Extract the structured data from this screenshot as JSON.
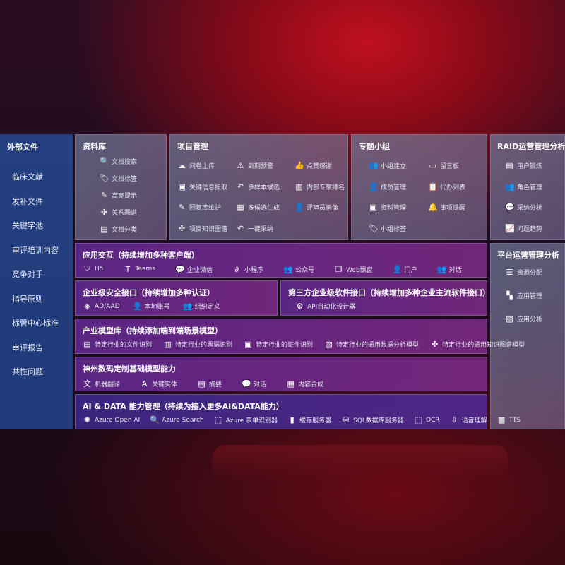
{
  "sidebar": {
    "title": "外部文件",
    "items": [
      "临床文献",
      "发补文件",
      "关键字池",
      "审评培训内容",
      "竞争对手",
      "指导原则",
      "标管中心标准",
      "审评报告",
      "共性问题"
    ]
  },
  "library": {
    "title": "资料库",
    "items": [
      {
        "icon": "doc-search-icon",
        "g": "🔍",
        "label": "文档搜索"
      },
      {
        "icon": "tag-icon",
        "g": "🏷",
        "label": "文档标签"
      },
      {
        "icon": "pen-icon",
        "g": "✎",
        "label": "高亮提示"
      },
      {
        "icon": "graph-icon",
        "g": "✣",
        "label": "关系图谱"
      },
      {
        "icon": "doc-classify-icon",
        "g": "▤",
        "label": "文档分类"
      }
    ]
  },
  "project": {
    "title": "项目管理",
    "items": [
      {
        "icon": "cloud-upload-icon",
        "g": "☁",
        "label": "问卷上传"
      },
      {
        "icon": "alarm-icon",
        "g": "⚠",
        "label": "到期预警"
      },
      {
        "icon": "thumbs-up-icon",
        "g": "👍",
        "label": "点赞感谢"
      },
      {
        "icon": "extract-icon",
        "g": "▣",
        "label": "关键信息提取"
      },
      {
        "icon": "reply-icon",
        "g": "↶",
        "label": "多样本候选"
      },
      {
        "icon": "ranking-icon",
        "g": "▥",
        "label": "内部专家排名"
      },
      {
        "icon": "edit-icon",
        "g": "✎",
        "label": "回复库维护"
      },
      {
        "icon": "puzzle-icon",
        "g": "▦",
        "label": "多候选生成"
      },
      {
        "icon": "user-icon",
        "g": "👤",
        "label": "评审员画像"
      },
      {
        "icon": "knowledge-graph-icon",
        "g": "✣",
        "label": "项目知识图谱"
      },
      {
        "icon": "reply-icon",
        "g": "↶",
        "label": "一键采纳"
      }
    ]
  },
  "group": {
    "title": "专题小组",
    "items": [
      {
        "icon": "group-icon",
        "g": "👥",
        "label": "小组建立"
      },
      {
        "icon": "bbs-icon",
        "g": "▭",
        "label": "留言板"
      },
      {
        "icon": "member-icon",
        "g": "👤",
        "label": "成员管理"
      },
      {
        "icon": "clipboard-icon",
        "g": "📋",
        "label": "代办列表"
      },
      {
        "icon": "folder-icon",
        "g": "▣",
        "label": "资料管理"
      },
      {
        "icon": "bell-icon",
        "g": "🔔",
        "label": "事项提醒"
      },
      {
        "icon": "tag-icon",
        "g": "🏷",
        "label": "小组标签"
      }
    ]
  },
  "raid": {
    "title": "RAID运营管理分析",
    "items": [
      {
        "icon": "id-card-icon",
        "g": "▤",
        "label": "用户锻炼"
      },
      {
        "icon": "roles-icon",
        "g": "👥",
        "label": "角色管理"
      },
      {
        "icon": "qa-icon",
        "g": "💬",
        "label": "采纳分析"
      },
      {
        "icon": "trend-icon",
        "g": "📈",
        "label": "问题趋势"
      }
    ]
  },
  "platform": {
    "title": "平台运营管理分析",
    "items": [
      {
        "icon": "list-icon",
        "g": "☰",
        "label": "资源分配"
      },
      {
        "icon": "apps-icon",
        "g": "▚",
        "label": "应用管理"
      },
      {
        "icon": "analysis-icon",
        "g": "▧",
        "label": "应用分析"
      }
    ]
  },
  "interaction": {
    "title": "应用交互（持续增加多种客户端）",
    "items": [
      {
        "icon": "html5-icon",
        "g": "⛉",
        "label": "H5"
      },
      {
        "icon": "teams-icon",
        "g": "T",
        "label": "Teams"
      },
      {
        "icon": "wechat-work-icon",
        "g": "💬",
        "label": "企业微信"
      },
      {
        "icon": "mini-program-icon",
        "g": "∂",
        "label": "小程序"
      },
      {
        "icon": "official-account-icon",
        "g": "👥",
        "label": "公众号"
      },
      {
        "icon": "window-icon",
        "g": "❐",
        "label": "Web飘窗"
      },
      {
        "icon": "portal-icon",
        "g": "👤",
        "label": "门户"
      },
      {
        "icon": "dialog-icon",
        "g": "👥",
        "label": "对话"
      }
    ]
  },
  "security": {
    "title": "企业级安全接口（持续增加多种认证）",
    "items": [
      {
        "icon": "ad-icon",
        "g": "◈",
        "label": "AD/AAD"
      },
      {
        "icon": "local-account-icon",
        "g": "👤",
        "label": "本地账号"
      },
      {
        "icon": "org-icon",
        "g": "👥",
        "label": "组织定义"
      }
    ]
  },
  "thirdparty": {
    "title": "第三方企业级软件接口（持续增加多种企业主流软件接口）",
    "items": [
      {
        "icon": "gear-icon",
        "g": "⚙",
        "label": "API自动化设计器"
      }
    ]
  },
  "industry": {
    "title": "产业模型库（持续添加端到端场景模型）",
    "items": [
      {
        "icon": "file-icon",
        "g": "▤",
        "label": "特定行业的文件识别"
      },
      {
        "icon": "receipt-icon",
        "g": "▥",
        "label": "特定行业的票据识别"
      },
      {
        "icon": "id-card-icon",
        "g": "▣",
        "label": "特定行业的证件识别"
      },
      {
        "icon": "chart-icon",
        "g": "▧",
        "label": "特定行业的通用数据分析模型"
      },
      {
        "icon": "knowledge-graph-icon",
        "g": "✣",
        "label": "特定行业的通用知识图谱模型"
      }
    ]
  },
  "foundation": {
    "title": "神州数码定制基础模型能力",
    "items": [
      {
        "icon": "translate-icon",
        "g": "文",
        "label": "机器翻译"
      },
      {
        "icon": "entity-icon",
        "g": "A",
        "label": "关键实体"
      },
      {
        "icon": "summary-icon",
        "g": "▤",
        "label": "摘要"
      },
      {
        "icon": "chat-icon",
        "g": "💬",
        "label": "对话"
      },
      {
        "icon": "compose-icon",
        "g": "▦",
        "label": "内容合成"
      }
    ]
  },
  "aidata": {
    "title": "AI & DATA 能力管理（持续为接入更多AI&DATA能力）",
    "items": [
      {
        "icon": "openai-icon",
        "g": "✺",
        "label": "Azure Open AI"
      },
      {
        "icon": "search-icon",
        "g": "🔍",
        "label": "Azure Search"
      },
      {
        "icon": "form-recognizer-icon",
        "g": "⬚",
        "label": "Azure 表单识别器"
      },
      {
        "icon": "cache-icon",
        "g": "▮",
        "label": "缓存服务器"
      },
      {
        "icon": "database-icon",
        "g": "⛁",
        "label": "SQL数据库服务器"
      },
      {
        "icon": "ocr-icon",
        "g": "⬚",
        "label": "OCR"
      },
      {
        "icon": "speech-icon",
        "g": "⇩",
        "label": "语音理解"
      },
      {
        "icon": "tts-icon",
        "g": "▩",
        "label": "TTS"
      }
    ]
  }
}
